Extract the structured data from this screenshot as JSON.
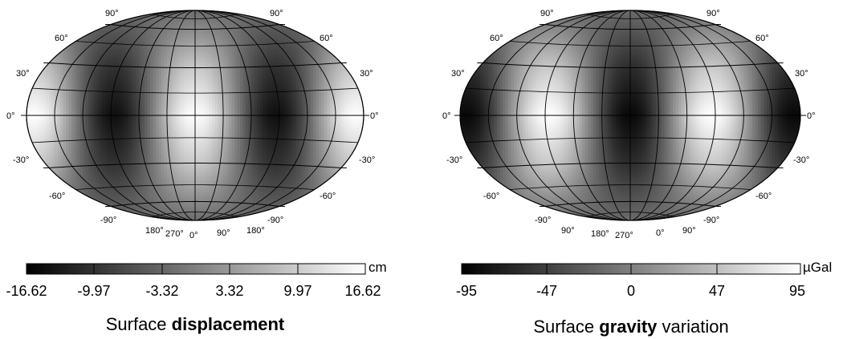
{
  "panels": [
    {
      "id": "displacement",
      "field": "displacement",
      "lat_labels": [
        "90°",
        "60°",
        "30°",
        "0°",
        "-30°",
        "-60°",
        "-90°"
      ],
      "lon_labels": [
        "180°",
        "270°",
        "0°",
        "90°",
        "180°"
      ],
      "colorbar": {
        "unit": "cm",
        "ticks": [
          "-16.62",
          "-9.97",
          "-3.32",
          "3.32",
          "9.97",
          "16.62"
        ]
      },
      "caption": {
        "normal1": "Surface ",
        "bold": "displacement",
        "normal2": ""
      }
    },
    {
      "id": "gravity",
      "field": "gravity",
      "lat_labels": [
        "90°",
        "60°",
        "30°",
        "0°",
        "-30°",
        "-60°",
        "-90°"
      ],
      "lon_labels": [
        "90°",
        "180°",
        "270°",
        "0°",
        "90°"
      ],
      "colorbar": {
        "unit": "µGal",
        "ticks": [
          "-95",
          "-47",
          "0",
          "47",
          "95"
        ]
      },
      "caption": {
        "normal1": "Surface ",
        "bold": "gravity",
        "normal2": " variation"
      }
    }
  ]
}
